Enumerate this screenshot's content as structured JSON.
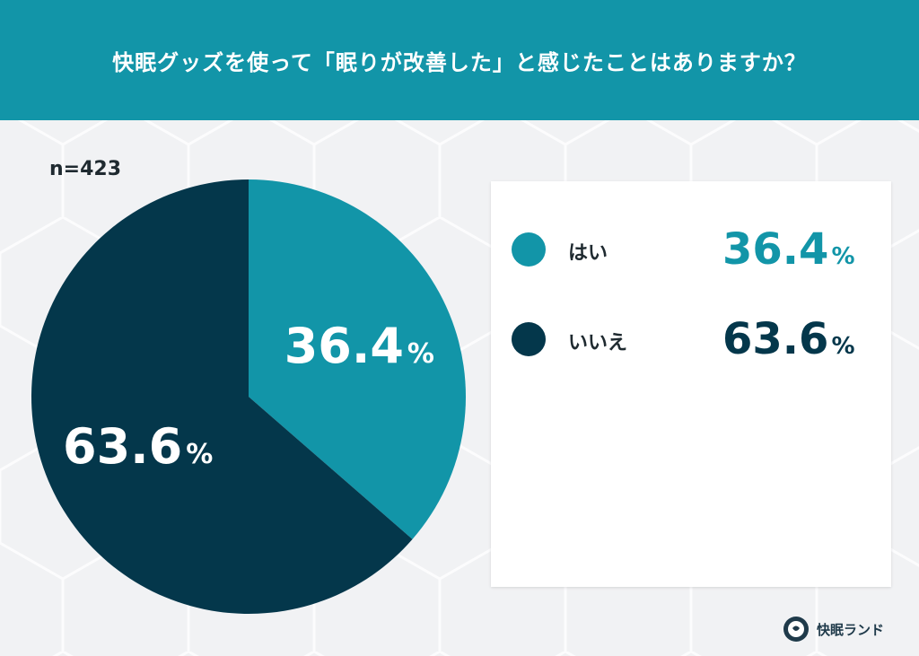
{
  "header": {
    "title": "快眠グッズを使って「眠りが改善した」と感じたことはありますか？"
  },
  "sample": {
    "label": "n=423"
  },
  "chart_data": {
    "type": "pie",
    "unit": "%",
    "slices": [
      {
        "label": "はい",
        "value": 36.4,
        "value_text": "36.4",
        "color": "#1295a8"
      },
      {
        "label": "いいえ",
        "value": 63.6,
        "value_text": "63.6",
        "color": "#04374b"
      }
    ]
  },
  "brand": {
    "name": "快眠ランド",
    "logo_icon": "kaimin-land-logo"
  },
  "colors": {
    "header": "#1295a8",
    "yes": "#1295a8",
    "no": "#04374b",
    "background": "#f1f2f4"
  }
}
